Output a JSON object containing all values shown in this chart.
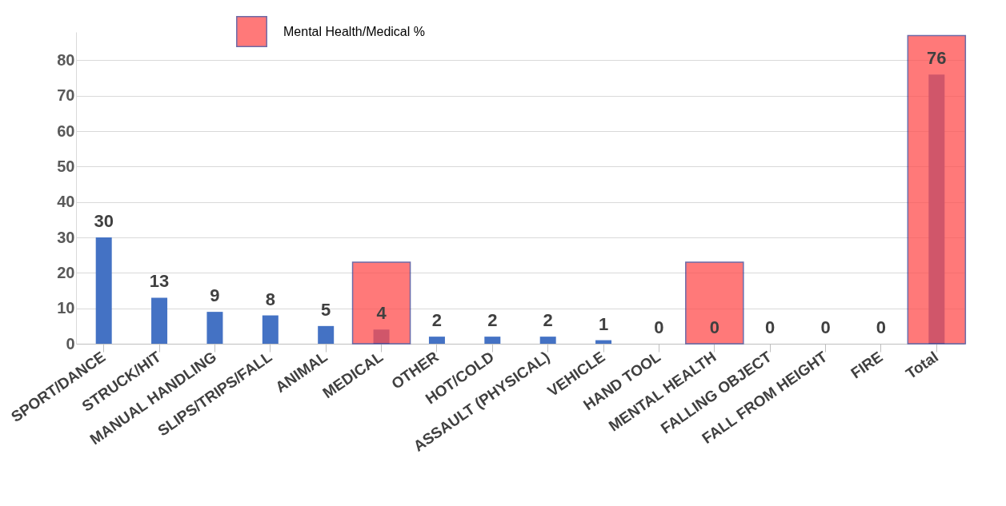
{
  "chart_data": {
    "type": "bar",
    "categories": [
      "SPORT/DANCE",
      "STRUCK/HIT",
      "MANUAL HANDLING",
      "SLIPS/TRIPS/FALL",
      "ANIMAL",
      "MEDICAL",
      "OTHER",
      "HOT/COLD",
      "ASSAULT (PHYSICAL)",
      "VEHICLE",
      "HAND TOOL",
      "MENTAL HEALTH",
      "FALLING OBJECT",
      "FALL FROM HEIGHT",
      "FIRE",
      "Total"
    ],
    "series": [
      {
        "color": "#4472c4",
        "values": [
          30,
          13,
          9,
          8,
          5,
          4,
          2,
          2,
          2,
          1,
          0,
          0,
          0,
          0,
          0,
          76
        ],
        "value_labels": [
          "30",
          "13",
          "9",
          "8",
          "5",
          "4",
          "2",
          "2",
          "2",
          "1",
          "0",
          "0",
          "0",
          "0",
          "0",
          "76"
        ]
      },
      {
        "name": "Mental Health/Medical %",
        "color": "#ff4d4d",
        "values": [
          null,
          null,
          null,
          null,
          null,
          23,
          null,
          null,
          null,
          null,
          null,
          23,
          null,
          null,
          null,
          87
        ]
      }
    ],
    "ylim": [
      0,
      88
    ],
    "yticks": [
      0,
      10,
      20,
      30,
      40,
      50,
      60,
      70,
      80
    ],
    "grid": "y",
    "legend": "top left"
  }
}
